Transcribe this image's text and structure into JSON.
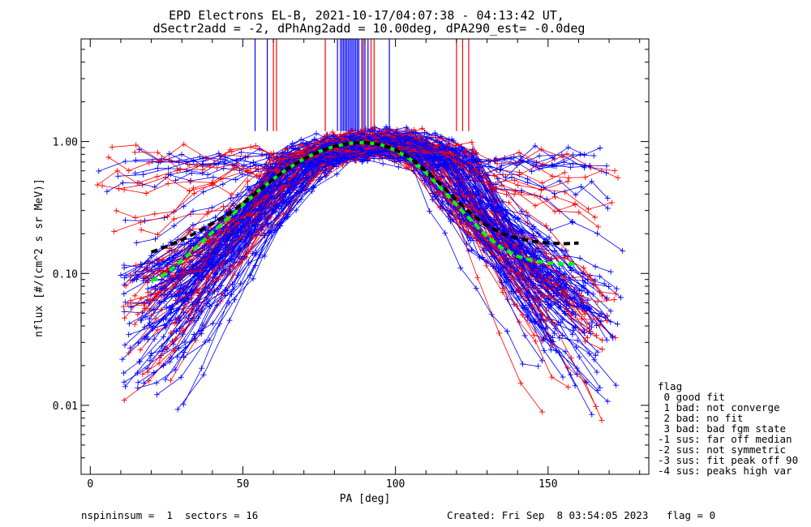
{
  "chart_data": {
    "type": "line",
    "title_line1": "EPD Electrons EL-B, 2021-10-17/04:07:38 - 04:13:42 UT,",
    "title_line2": "dSectr2add = -2, dPhAng2add = 10.00deg, dPA290_est=  -0.0deg",
    "xlabel": "PA [deg]",
    "ylabel": "nflux [#/(cm^2 s sr MeV)]",
    "xlim": [
      -3,
      183
    ],
    "ylim": [
      0.003,
      6.0
    ],
    "yscale": "log",
    "x_ticks": [
      0,
      50,
      100,
      150
    ],
    "x_tick_labels": [
      "0",
      "50",
      "100",
      "150"
    ],
    "y_ticks": [
      0.01,
      0.1,
      1.0
    ],
    "y_tick_labels": [
      "0.01",
      "0.10",
      "1.00"
    ],
    "colors": {
      "blue": "#0000ff",
      "red": "#ff0000",
      "green": "#00ff00",
      "black": "#000000"
    },
    "fit_curves": [
      {
        "color": "#00ff00",
        "style": "dashed",
        "x": [
          20,
          25,
          30,
          35,
          40,
          45,
          50,
          55,
          60,
          65,
          70,
          75,
          80,
          85,
          90,
          95,
          100,
          105,
          110,
          115,
          120,
          125,
          130,
          135,
          140,
          145,
          150,
          155,
          160
        ],
        "y": [
          0.088,
          0.1,
          0.125,
          0.16,
          0.205,
          0.26,
          0.33,
          0.42,
          0.52,
          0.63,
          0.74,
          0.84,
          0.92,
          0.97,
          0.985,
          0.95,
          0.86,
          0.73,
          0.58,
          0.44,
          0.33,
          0.25,
          0.19,
          0.155,
          0.135,
          0.125,
          0.12,
          0.118,
          0.118
        ]
      },
      {
        "color": "#000000",
        "style": "dashed",
        "x": [
          20,
          25,
          30,
          35,
          40,
          45,
          50,
          55,
          60,
          65,
          70,
          75,
          80,
          85,
          90,
          95,
          100,
          105,
          110,
          115,
          120,
          125,
          130,
          135,
          140,
          145,
          150,
          155,
          160
        ],
        "y": [
          0.145,
          0.16,
          0.18,
          0.205,
          0.24,
          0.28,
          0.34,
          0.42,
          0.52,
          0.63,
          0.74,
          0.84,
          0.92,
          0.97,
          0.985,
          0.95,
          0.87,
          0.75,
          0.6,
          0.47,
          0.36,
          0.28,
          0.23,
          0.2,
          0.185,
          0.175,
          0.17,
          0.168,
          0.17
        ]
      }
    ],
    "vertical_markers": {
      "blue_x": [
        54,
        58,
        81,
        82,
        82.5,
        83,
        83.5,
        84,
        84.5,
        85,
        85.5,
        86,
        86.5,
        87,
        87.5,
        88,
        89,
        90,
        91,
        98
      ],
      "red_x": [
        60,
        61,
        77,
        89.5,
        92,
        93,
        120,
        122,
        124
      ],
      "y_bottom": 1.2
    },
    "flag_legend": {
      "title": "flag",
      "items": [
        " 0 good fit",
        " 1 bad: not converge",
        " 2 bad: no fit",
        " 3 bad: bad fgm state",
        "-1 sus: far off median",
        "-2 sus: not symmetric",
        "-3 sus: fit peak off 90",
        "-4 sus: peaks high var"
      ]
    }
  },
  "footer": {
    "left": "nspininsum =  1  sectors = 16",
    "right": "Created: Fri Sep  8 03:54:05 2023   flag = 0"
  }
}
